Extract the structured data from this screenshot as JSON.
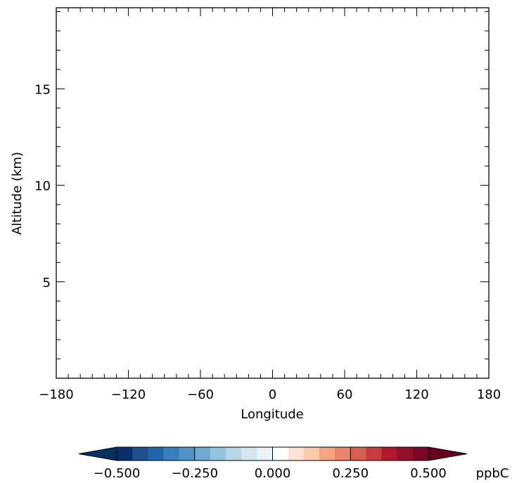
{
  "chart_data": {
    "type": "heatmap",
    "title": "",
    "xlabel": "Longitude",
    "ylabel": "Altitude (km)",
    "xlim": [
      -180,
      180
    ],
    "ylim": [
      0,
      19.2
    ],
    "x_ticks": [
      -180,
      -120,
      -60,
      0,
      60,
      120,
      180
    ],
    "x_tick_labels": [
      "−180",
      "−120",
      "−60",
      "0",
      "60",
      "120",
      "180"
    ],
    "y_ticks": [
      5,
      10,
      15
    ],
    "y_tick_labels": [
      "5",
      "10",
      "15"
    ],
    "values": [],
    "colorbar": {
      "unit": "ppbC",
      "range": [
        -0.5,
        0.5
      ],
      "tick_values": [
        -0.5,
        -0.25,
        0,
        0.25,
        0.5
      ],
      "tick_labels": [
        "−0.500",
        "−0.250",
        "0.000",
        "0.250",
        "0.500"
      ],
      "extend": "both",
      "under_color": "#053061",
      "over_color": "#67001f",
      "colors": [
        "#08306b",
        "#1f4f8f",
        "#2166ac",
        "#3a7fbd",
        "#4f94c9",
        "#6fa9d4",
        "#93c4de",
        "#b7d7e8",
        "#d4e5f0",
        "#ebf2f7",
        "#ffffff",
        "#fbe3d6",
        "#fcc9b1",
        "#f4a582",
        "#e8856a",
        "#d6604d",
        "#c73c3f",
        "#b2182b",
        "#93102a",
        "#7a0826"
      ]
    }
  }
}
